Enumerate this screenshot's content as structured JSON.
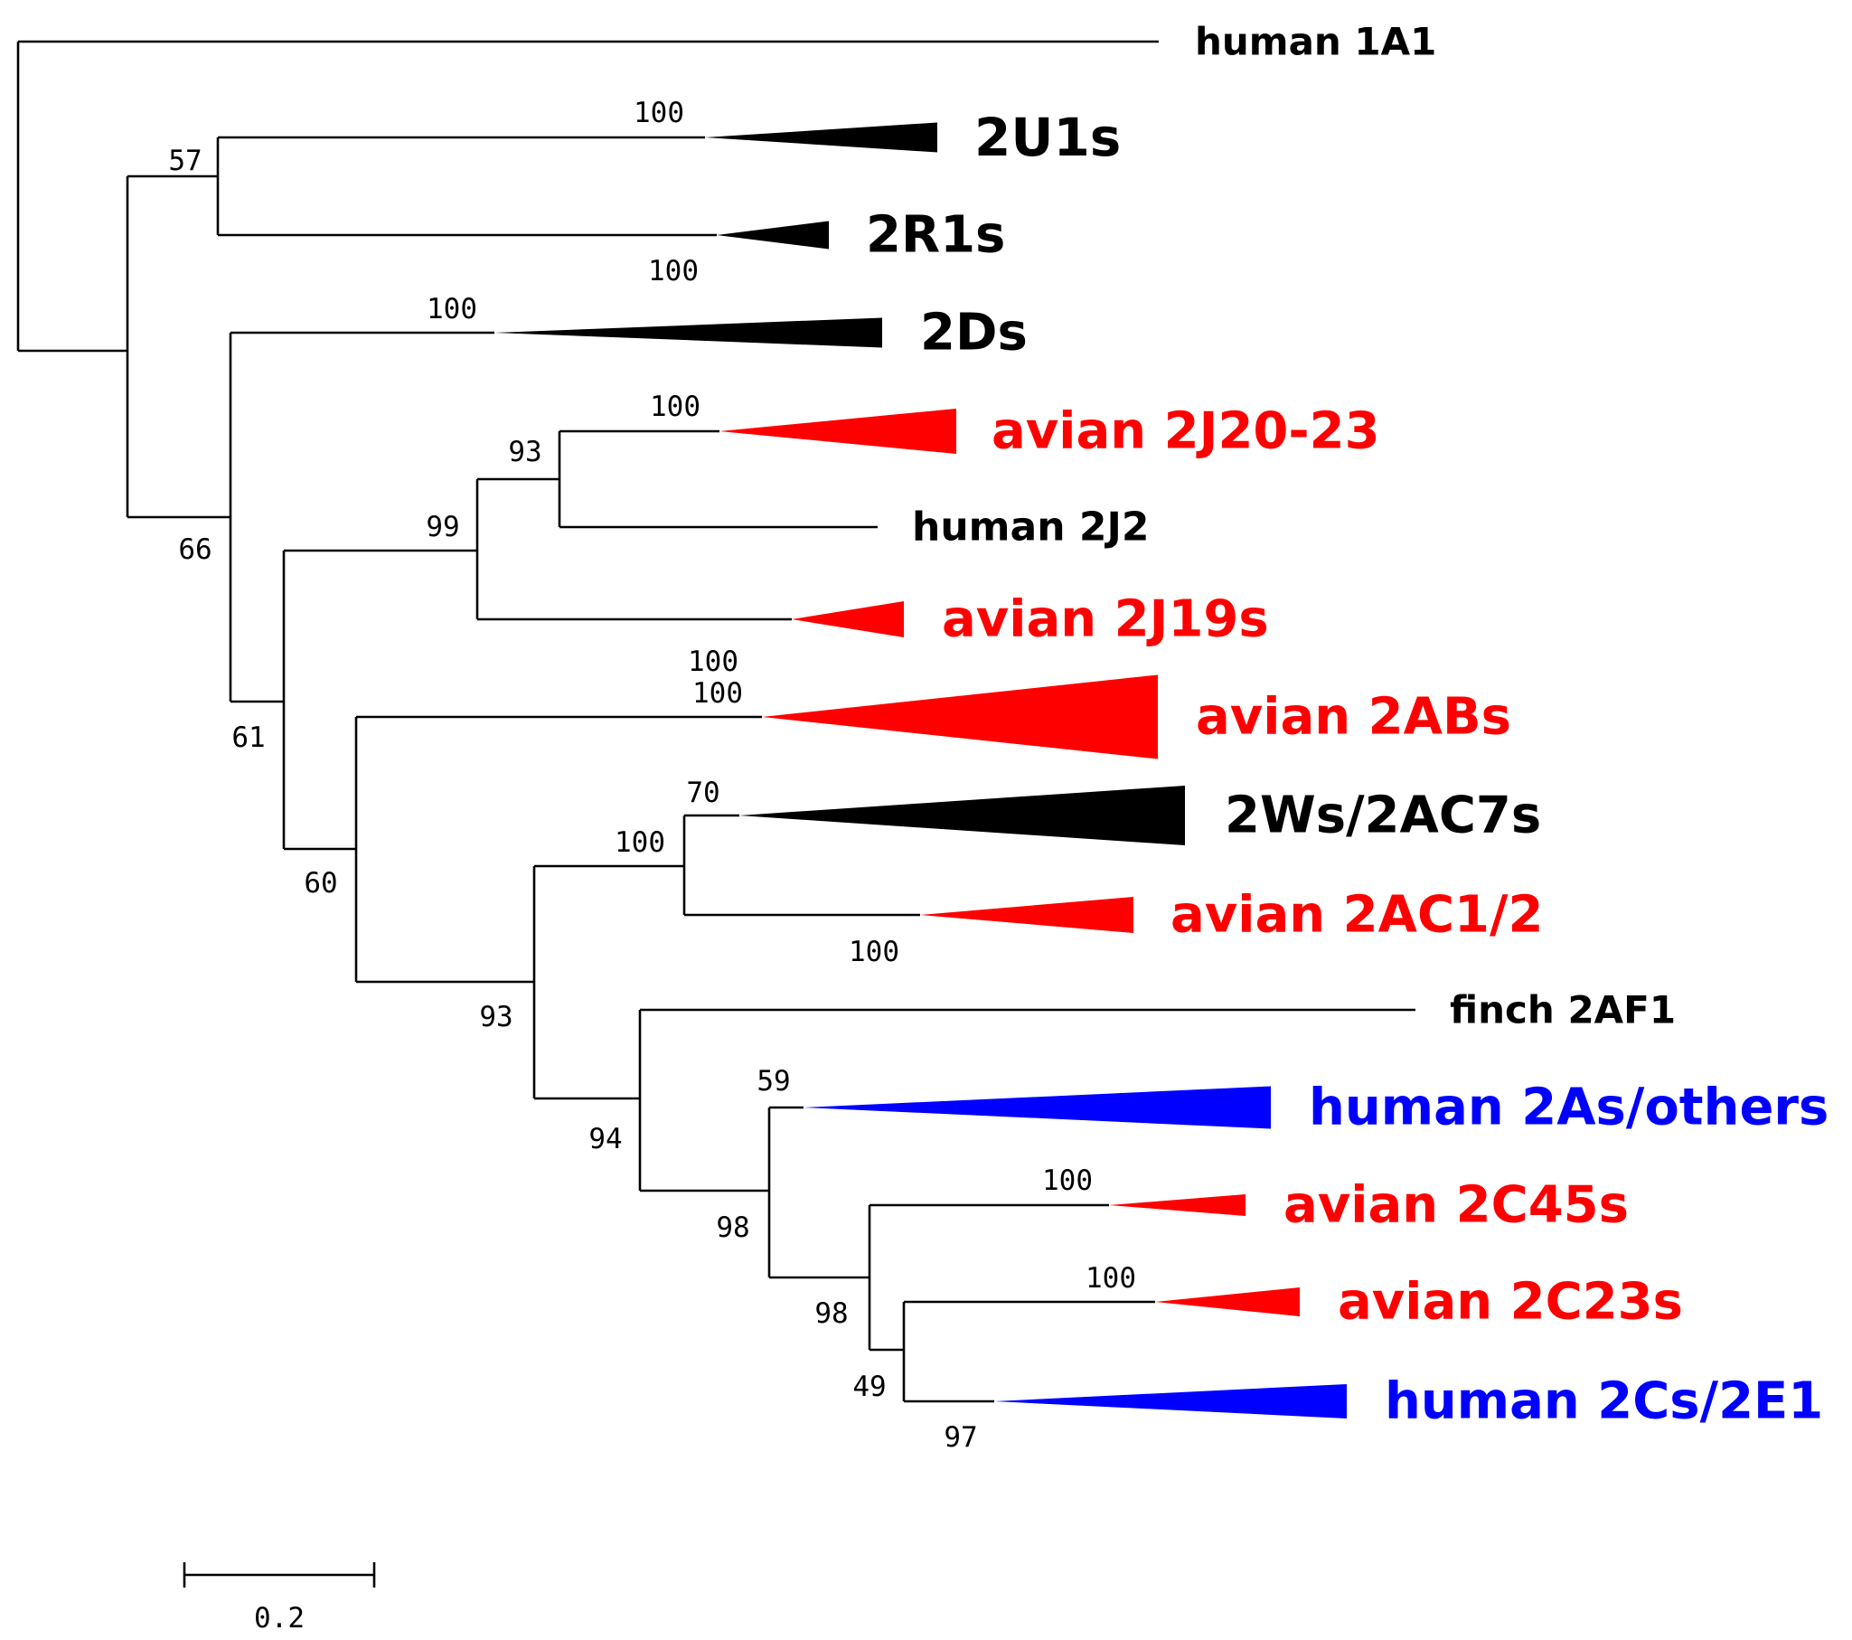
{
  "colors": {
    "black": "#000000",
    "red": "#ff0000",
    "blue": "#0000ff"
  },
  "leaves": [
    {
      "id": "h1a1",
      "label": "human 1A1",
      "color": "black",
      "kind": "line"
    },
    {
      "id": "u1",
      "label": "2U1s",
      "color": "black",
      "kind": "clade"
    },
    {
      "id": "r1",
      "label": "2R1s",
      "color": "black",
      "kind": "clade"
    },
    {
      "id": "d",
      "label": "2Ds",
      "color": "black",
      "kind": "clade"
    },
    {
      "id": "j20",
      "label": "avian 2J20-23",
      "color": "red",
      "kind": "clade"
    },
    {
      "id": "hj2",
      "label": "human 2J2",
      "color": "black",
      "kind": "line"
    },
    {
      "id": "j19",
      "label": "avian 2J19s",
      "color": "red",
      "kind": "clade"
    },
    {
      "id": "ab",
      "label": "avian 2ABs",
      "color": "red",
      "kind": "clade"
    },
    {
      "id": "w",
      "label": "2Ws/2AC7s",
      "color": "black",
      "kind": "clade"
    },
    {
      "id": "ac12",
      "label": "avian 2AC1/2",
      "color": "red",
      "kind": "clade"
    },
    {
      "id": "af1",
      "label": "finch 2AF1",
      "color": "black",
      "kind": "line"
    },
    {
      "id": "ha",
      "label": "human 2As/others",
      "color": "blue",
      "kind": "clade"
    },
    {
      "id": "c45",
      "label": "avian 2C45s",
      "color": "red",
      "kind": "clade"
    },
    {
      "id": "c23",
      "label": "avian 2C23s",
      "color": "red",
      "kind": "clade"
    },
    {
      "id": "hc",
      "label": "human 2Cs/2E1",
      "color": "blue",
      "kind": "clade"
    }
  ],
  "bootstrap": {
    "u1": "100",
    "r1": "100",
    "u1_r1": "57",
    "d": "100",
    "j20": "100",
    "j20_hj2": "93",
    "j19": "100",
    "j_group": "99",
    "ab": "100",
    "w": "70",
    "w_ac": "100",
    "ac12": "100",
    "ha": "59",
    "c45": "100",
    "c23": "100",
    "hc": "97",
    "c23_hc": "49",
    "c_group": "98",
    "ha_c": "98",
    "af1_group": "94",
    "w_af1": "93",
    "ab_w": "60",
    "j_ab": "61",
    "d_j": "66"
  },
  "scale_bar": {
    "value": 0.2,
    "label": "0.2"
  }
}
